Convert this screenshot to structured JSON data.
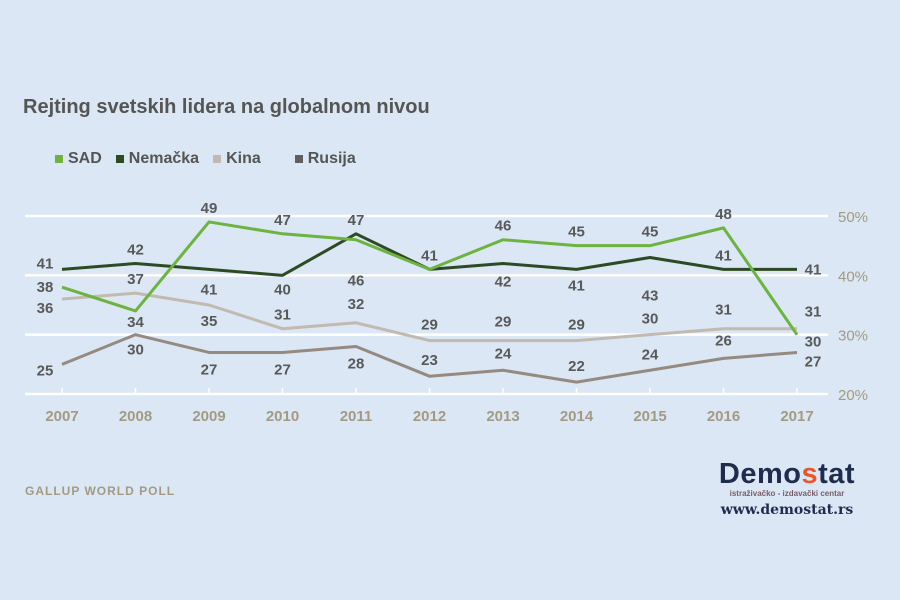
{
  "title": "Rejting svetskih lidera na globalnom nivou",
  "source": "GALLUP WORLD POLL",
  "logo": {
    "name_a": "Demo",
    "name_s": "s",
    "name_b": "tat",
    "tagline": "istraživačko - izdavački centar",
    "url": "www.demostat.rs",
    "colors": {
      "main": "#1f2c4e",
      "accent": "#e8562a"
    }
  },
  "chart_data": {
    "type": "line",
    "title": "Rejting svetskih lidera na globalnom nivou",
    "categories": [
      "2007",
      "2008",
      "2009",
      "2010",
      "2011",
      "2012",
      "2013",
      "2014",
      "2015",
      "2016",
      "2017"
    ],
    "y_ticks": [
      "20%",
      "30%",
      "40%",
      "50%"
    ],
    "ylim": [
      20,
      50
    ],
    "y_axis_position": "right",
    "grid": true,
    "legend_position": "top-left",
    "series": [
      {
        "name": "SAD",
        "color": "#6db33f",
        "values": [
          38,
          34,
          49,
          47,
          46,
          41,
          46,
          45,
          45,
          48,
          30
        ]
      },
      {
        "name": "Nemačka",
        "color": "#2e4a24",
        "values": [
          41,
          42,
          41,
          40,
          47,
          41,
          42,
          41,
          43,
          41,
          41
        ]
      },
      {
        "name": "Kina",
        "color": "#c2b9b0",
        "values": [
          36,
          37,
          35,
          31,
          32,
          29,
          29,
          29,
          30,
          31,
          31
        ]
      },
      {
        "name": "Rusija",
        "color": "#958a80",
        "values": [
          25,
          30,
          27,
          27,
          28,
          23,
          24,
          22,
          24,
          26,
          27
        ]
      }
    ]
  }
}
